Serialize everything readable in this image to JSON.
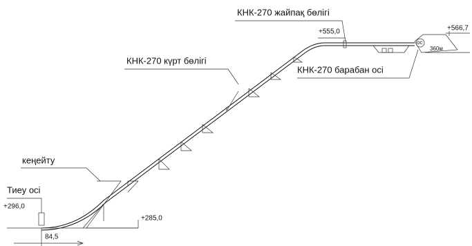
{
  "labels": {
    "flat_section": "КНК-270 жайпақ бөлігі",
    "flat_elevation": "+555,0",
    "top_elevation": "+566,7",
    "steep_section": "КНК-270 күрт бөлігі",
    "drum_axis": "КНК-270 барабан осі",
    "widening": "кеңейту",
    "loading_axis": "Тиеу осі",
    "loading_elevation": "+296,0",
    "base_elevation": "+285,0",
    "distance": "84,5",
    "drum_length": "360м",
    "drum_mark": "ос"
  }
}
